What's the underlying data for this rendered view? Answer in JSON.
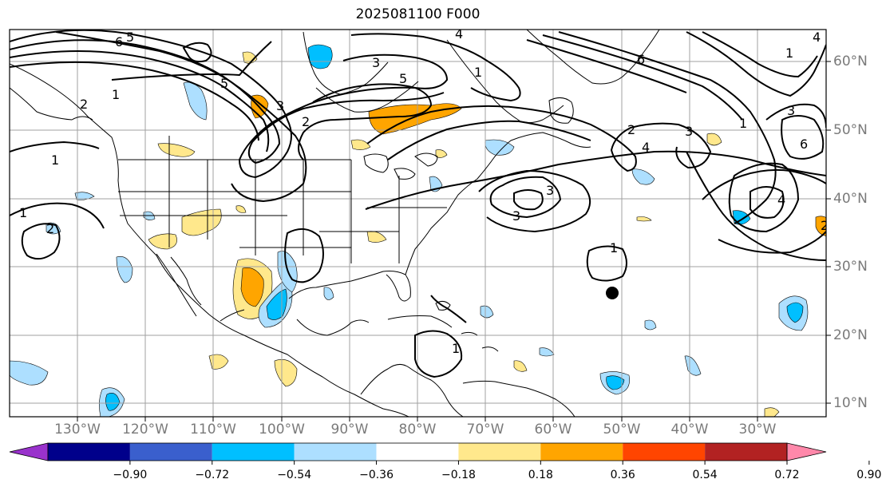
{
  "title": "2025081100 F000",
  "lat_labels": [
    "60°N",
    "50°N",
    "40°N",
    "30°N",
    "20°N",
    "10°N"
  ],
  "lon_labels": [
    "130°W",
    "120°W",
    "110°W",
    "100°W",
    "90°W",
    "80°W",
    "70°W",
    "60°W",
    "50°W",
    "40°W",
    "30°W"
  ],
  "colorbar": {
    "ticks": [
      "−0.90",
      "−0.72",
      "−0.54",
      "−0.36",
      "−0.18",
      "0.18",
      "0.36",
      "0.54",
      "0.72",
      "0.90"
    ],
    "colors": [
      "#9932CC",
      "#00008B",
      "#3A5FCD",
      "#00BFFF",
      "#ADDFFF",
      "#FFFFFF",
      "#FFE88C",
      "#FFA500",
      "#FF4500",
      "#B22222",
      "#FF88AA"
    ]
  },
  "contour_labels": [
    "6",
    "5",
    "3",
    "4",
    "5",
    "1",
    "2",
    "2",
    "3",
    "1",
    "3",
    "1",
    "4",
    "6",
    "3",
    "1",
    "2",
    "5",
    "3",
    "1",
    "2",
    "1",
    "1",
    "4",
    "3",
    "6",
    "1",
    "2",
    "4"
  ],
  "colors": {
    "land_outline": "#000000",
    "grid": "#a0a0a0",
    "contour": "#000000",
    "shade_blue": "#00BFFF",
    "shade_lightblue": "#ADDFFF",
    "shade_yellow": "#FFE88C",
    "shade_orange": "#FFA500"
  }
}
